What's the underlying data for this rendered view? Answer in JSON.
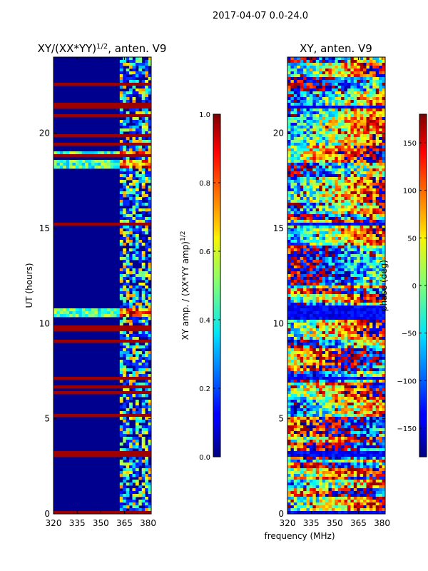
{
  "figure": {
    "suptitle": "2017-04-07 0.0-24.0",
    "xlabel": "frequency (MHz)"
  },
  "chart_data": [
    {
      "type": "heatmap",
      "title_main": "XY/(XX*YY)",
      "title_sup": "1/2",
      "title_tail": ", anten. V9",
      "xlabel": "",
      "ylabel": "UT (hours)",
      "x_ticks": [
        "320",
        "335",
        "350",
        "365",
        "380"
      ],
      "x_tick_values": [
        320,
        335,
        350,
        365,
        380
      ],
      "y_ticks": [
        "0",
        "5",
        "10",
        "15",
        "20"
      ],
      "y_tick_values": [
        0,
        5,
        10,
        15,
        20
      ],
      "xlim": [
        320,
        382
      ],
      "ylim": [
        0,
        24
      ],
      "colormap": "jet",
      "colorbar": {
        "label_main": "XY amp. / (XX*YY amp)",
        "label_sup": "1/2",
        "range": [
          0.0,
          1.0
        ],
        "ticks": [
          "0.0",
          "0.2",
          "0.4",
          "0.6",
          "0.8",
          "1.0"
        ],
        "tick_values": [
          0.0,
          0.2,
          0.4,
          0.6,
          0.8,
          1.0
        ]
      },
      "flagged_bands_hours": [
        [
          0.0,
          0.15
        ],
        [
          3.0,
          3.35
        ],
        [
          5.1,
          5.3
        ],
        [
          7.05,
          7.2
        ],
        [
          15.1,
          15.25
        ],
        [
          21.5,
          21.6
        ]
      ],
      "strong_bands_hours": [
        [
          10.4,
          10.8
        ],
        [
          18.2,
          18.6
        ],
        [
          18.9,
          19.05
        ]
      ],
      "active_region_mhz": [
        361,
        382
      ]
    },
    {
      "type": "heatmap",
      "title_main": "XY, anten. V9",
      "xlabel": "",
      "ylabel": "",
      "x_ticks": [
        "320",
        "335",
        "350",
        "365",
        "380"
      ],
      "x_tick_values": [
        320,
        335,
        350,
        365,
        380
      ],
      "y_ticks": [
        "0",
        "5",
        "10",
        "15",
        "20"
      ],
      "y_tick_values": [
        0,
        5,
        10,
        15,
        20
      ],
      "xlim": [
        320,
        382
      ],
      "ylim": [
        0,
        24
      ],
      "colormap": "jet",
      "colorbar": {
        "label_main": "phase (deg)",
        "range": [
          -180,
          180
        ],
        "ticks": [
          "−150",
          "−100",
          "−50",
          "0",
          "50",
          "100",
          "150"
        ],
        "tick_values": [
          -150,
          -100,
          -50,
          0,
          50,
          100,
          150
        ]
      },
      "dark_bands_hours": [
        [
          0.0,
          0.1
        ],
        [
          3.0,
          3.25
        ],
        [
          7.05,
          7.2
        ],
        [
          10.2,
          10.9
        ],
        [
          15.1,
          15.25
        ],
        [
          21.3,
          21.5
        ]
      ]
    }
  ]
}
